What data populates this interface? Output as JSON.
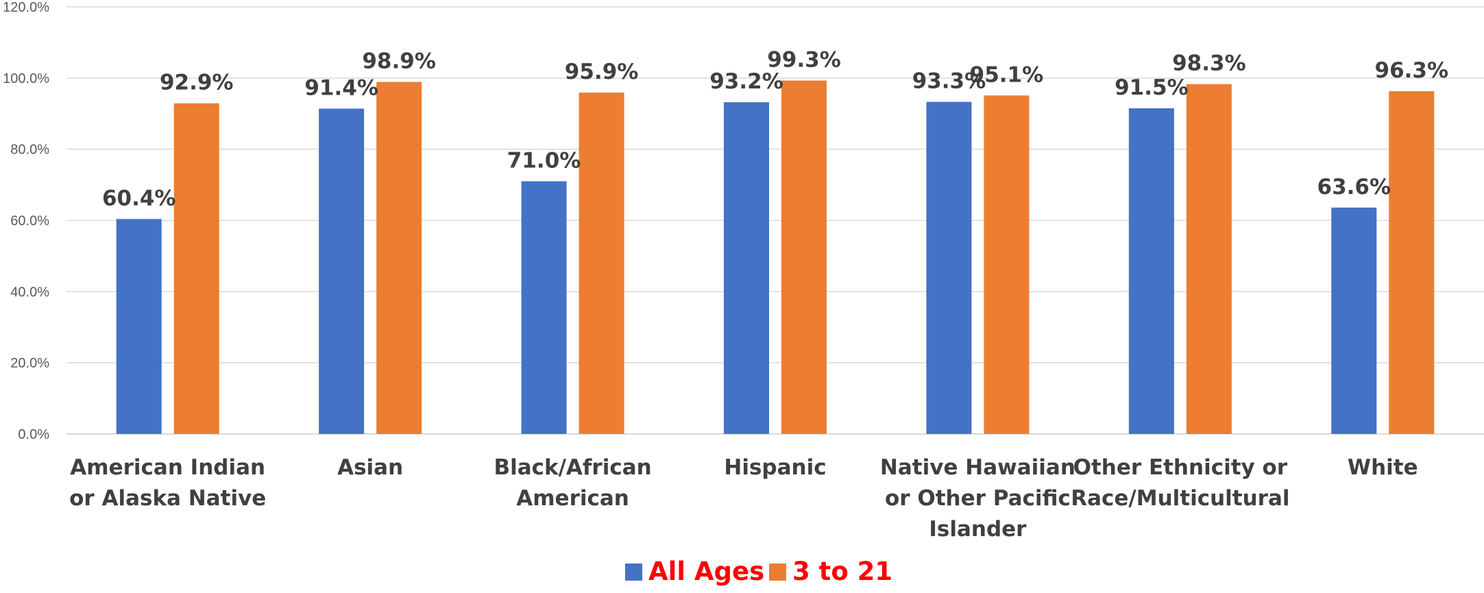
{
  "chart_data": {
    "type": "bar",
    "title": "",
    "xlabel": "",
    "ylabel": "",
    "ylim": [
      0,
      120
    ],
    "y_tick_labels": [
      "0.0%",
      "20.0%",
      "40.0%",
      "60.0%",
      "80.0%",
      "100.0%",
      "120.0%"
    ],
    "y_ticks": [
      0,
      20,
      40,
      60,
      80,
      100,
      120
    ],
    "grid": true,
    "legend_position": "bottom",
    "categories": [
      [
        "American Indian",
        "or Alaska Native"
      ],
      [
        "Asian"
      ],
      [
        "Black/African",
        "American"
      ],
      [
        "Hispanic"
      ],
      [
        "Native Hawaiian",
        "or Other Pacific",
        "Islander"
      ],
      [
        "Other Ethnicity or",
        "Race/Multicultural"
      ],
      [
        "White"
      ]
    ],
    "series": [
      {
        "name": "All Ages",
        "color": "#4472C4",
        "values": [
          60.4,
          91.4,
          71.0,
          93.2,
          93.3,
          91.5,
          63.6
        ],
        "labels": [
          "60.4%",
          "91.4%",
          "71.0%",
          "93.2%",
          "93.3%",
          "91.5%",
          "63.6%"
        ]
      },
      {
        "name": "3 to 21",
        "color": "#ED7D31",
        "values": [
          92.9,
          98.9,
          95.9,
          99.3,
          95.1,
          98.3,
          96.3
        ],
        "labels": [
          "92.9%",
          "98.9%",
          "95.9%",
          "99.3%",
          "95.1%",
          "98.3%",
          "96.3%"
        ]
      }
    ],
    "legend_text_color": "#FF0000",
    "gridline_color": "#D9D9D9"
  }
}
